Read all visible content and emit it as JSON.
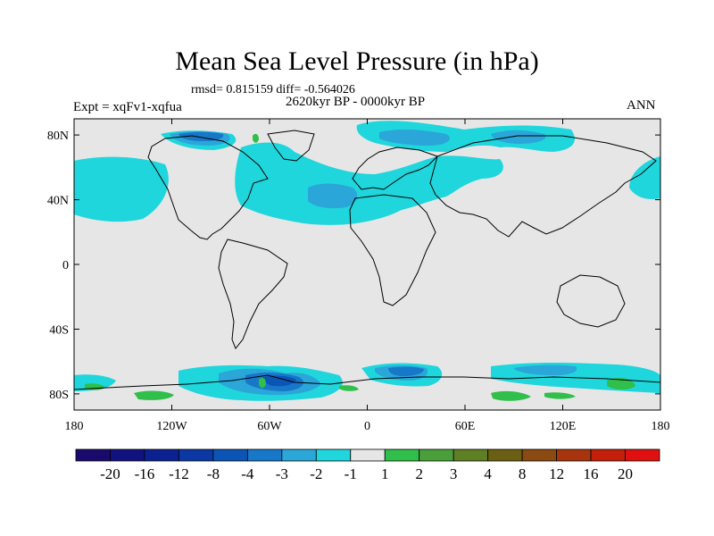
{
  "title": "Mean Sea Level Pressure (in hPa)",
  "stats": "rmsd= 0.815159 diff= -0.564026",
  "period": "2620kyr BP - 0000kyr BP",
  "experiment": "Expt = xqFv1-xqfua",
  "season": "ANN",
  "lat_ticks": [
    {
      "label": "80N",
      "value": 80
    },
    {
      "label": "40N",
      "value": 40
    },
    {
      "label": "0",
      "value": 0
    },
    {
      "label": "40S",
      "value": -40
    },
    {
      "label": "80S",
      "value": -80
    }
  ],
  "lon_ticks": [
    {
      "label": "180",
      "value": -180
    },
    {
      "label": "120W",
      "value": -120
    },
    {
      "label": "60W",
      "value": -60
    },
    {
      "label": "0",
      "value": 0
    },
    {
      "label": "60E",
      "value": 60
    },
    {
      "label": "120E",
      "value": 120
    },
    {
      "label": "180",
      "value": 180
    }
  ],
  "colorbar": {
    "labels": [
      "-20",
      "-16",
      "-12",
      "-8",
      "-4",
      "-3",
      "-2",
      "-1",
      "1",
      "2",
      "3",
      "4",
      "8",
      "12",
      "16",
      "20"
    ],
    "colors": [
      "#1a0a6e",
      "#11127f",
      "#0b2191",
      "#0b38a4",
      "#0b55b6",
      "#1777c8",
      "#2aa6d9",
      "#1fd6dc",
      "#e6e6e6",
      "#2fbf4a",
      "#4a9f3a",
      "#5f7f24",
      "#6a5f12",
      "#8a4a12",
      "#a8340e",
      "#c51f0b",
      "#e01010"
    ]
  },
  "colors": {
    "background_field": "#e6e6e6",
    "neg_minus1": "#1fd6dc",
    "neg_minus2": "#2aa6d9",
    "neg_minus3": "#1777c8",
    "neg_minus4": "#0b55b6",
    "pos_plus1": "#2fbf4a",
    "coastline": "#000000"
  }
}
